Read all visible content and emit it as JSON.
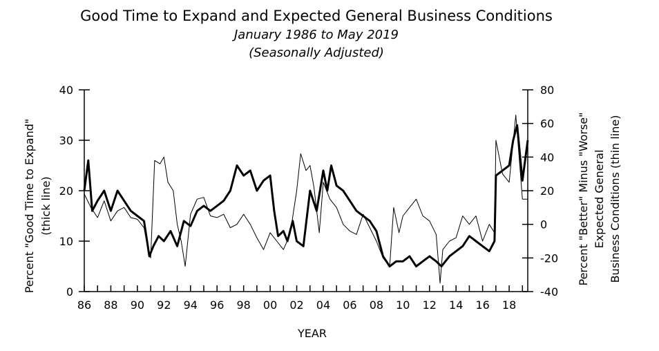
{
  "chart_data": {
    "type": "line",
    "title": "Good Time to Expand and Expected General Business Conditions",
    "subtitle_1": "January 1986 to May 2019",
    "subtitle_2": "(Seasonally Adjusted)",
    "xlabel": "YEAR",
    "ylabel_left_1": "Percent \"Good Time to Expand\"",
    "ylabel_left_2": "(thick line)",
    "ylabel_right_1": "Percent \"Better\" Minus \"Worse\"",
    "ylabel_right_2": "Expected General",
    "ylabel_right_3": "Business Conditions (thin line)",
    "xlim": [
      1986,
      2019.4
    ],
    "ylim_left": [
      0,
      40
    ],
    "ylim_right": [
      -40,
      80
    ],
    "x_ticks": [
      1986,
      1988,
      1990,
      1992,
      1994,
      1996,
      1998,
      2000,
      2002,
      2004,
      2006,
      2008,
      2010,
      2012,
      2014,
      2016,
      2018
    ],
    "x_tick_labels": [
      "86",
      "88",
      "90",
      "92",
      "94",
      "96",
      "98",
      "00",
      "02",
      "04",
      "06",
      "08",
      "10",
      "12",
      "14",
      "16",
      "18"
    ],
    "y_left_ticks": [
      0,
      10,
      20,
      30,
      40
    ],
    "y_left_tick_labels": [
      "0",
      "10",
      "20",
      "30",
      "40"
    ],
    "y_right_ticks": [
      -40,
      -20,
      0,
      20,
      40,
      60,
      80
    ],
    "y_right_tick_labels": [
      "-40",
      "-20",
      "0",
      "20",
      "40",
      "60",
      "80"
    ],
    "series": [
      {
        "name": "Good Time to Expand",
        "axis": "left",
        "style": "thick",
        "x": [
          1986.0,
          1986.3,
          1986.6,
          1987.0,
          1987.5,
          1988.0,
          1988.5,
          1989.0,
          1989.5,
          1990.0,
          1990.5,
          1990.9,
          1991.2,
          1991.6,
          1992.0,
          1992.5,
          1993.0,
          1993.5,
          1994.0,
          1994.5,
          1995.0,
          1995.5,
          1996.0,
          1996.5,
          1997.0,
          1997.5,
          1998.0,
          1998.5,
          1999.0,
          1999.5,
          2000.0,
          2000.3,
          2000.6,
          2001.0,
          2001.3,
          2001.7,
          2002.0,
          2002.5,
          2003.0,
          2003.5,
          2004.0,
          2004.3,
          2004.6,
          2005.0,
          2005.5,
          2006.0,
          2006.5,
          2007.0,
          2007.5,
          2008.0,
          2008.5,
          2009.0,
          2009.5,
          2010.0,
          2010.5,
          2011.0,
          2011.5,
          2012.0,
          2012.5,
          2012.9,
          2013.5,
          2014.0,
          2014.5,
          2015.0,
          2015.5,
          2016.0,
          2016.5,
          2016.9,
          2017.0,
          2017.5,
          2018.0,
          2018.3,
          2018.6,
          2019.0,
          2019.4
        ],
        "y": [
          20,
          26,
          16,
          18,
          20,
          16,
          20,
          18,
          16,
          15,
          14,
          7,
          9,
          11,
          10,
          12,
          9,
          14,
          13,
          16,
          17,
          16,
          17,
          18,
          20,
          25,
          23,
          24,
          20,
          22,
          23,
          16,
          11,
          12,
          10,
          14,
          10,
          9,
          20,
          16,
          24,
          20,
          25,
          21,
          20,
          18,
          16,
          15,
          14,
          12,
          7,
          5,
          6,
          6,
          7,
          5,
          6,
          7,
          6,
          5,
          7,
          8,
          9,
          11,
          10,
          9,
          8,
          10,
          23,
          24,
          25,
          30,
          33,
          22,
          30
        ]
      },
      {
        "name": "Expected General Business Conditions",
        "axis": "right",
        "style": "thin",
        "x": [
          1986.0,
          1986.5,
          1987.0,
          1987.5,
          1988.0,
          1988.5,
          1989.0,
          1989.5,
          1990.0,
          1990.5,
          1990.8,
          1991.0,
          1991.3,
          1991.7,
          1992.0,
          1992.3,
          1992.7,
          1993.0,
          1993.3,
          1993.6,
          1994.0,
          1994.5,
          1995.0,
          1995.5,
          1996.0,
          1996.5,
          1997.0,
          1997.5,
          1998.0,
          1998.5,
          1999.0,
          1999.5,
          2000.0,
          2000.5,
          2001.0,
          2001.5,
          2002.0,
          2002.3,
          2002.7,
          2003.0,
          2003.3,
          2003.7,
          2004.0,
          2004.5,
          2005.0,
          2005.5,
          2006.0,
          2006.5,
          2007.0,
          2007.5,
          2008.0,
          2008.5,
          2009.0,
          2009.3,
          2009.7,
          2010.0,
          2010.5,
          2011.0,
          2011.5,
          2012.0,
          2012.5,
          2012.8,
          2013.0,
          2013.5,
          2014.0,
          2014.5,
          2015.0,
          2015.5,
          2016.0,
          2016.5,
          2016.9,
          2017.0,
          2017.5,
          2018.0,
          2018.5,
          2019.0,
          2019.4
        ],
        "y": [
          18,
          10,
          4,
          14,
          2,
          8,
          10,
          4,
          3,
          -2,
          -15,
          -20,
          38,
          36,
          40,
          25,
          20,
          0,
          -10,
          -25,
          6,
          15,
          16,
          5,
          4,
          6,
          -2,
          0,
          6,
          0,
          -8,
          -15,
          -5,
          -10,
          -15,
          -6,
          20,
          42,
          32,
          35,
          22,
          -5,
          25,
          15,
          10,
          0,
          -4,
          -6,
          6,
          -2,
          -10,
          -20,
          -25,
          10,
          -5,
          5,
          10,
          15,
          5,
          2,
          -6,
          -35,
          -15,
          -10,
          -8,
          5,
          0,
          5,
          -10,
          0,
          -5,
          50,
          30,
          25,
          65,
          15,
          15
        ]
      }
    ]
  }
}
